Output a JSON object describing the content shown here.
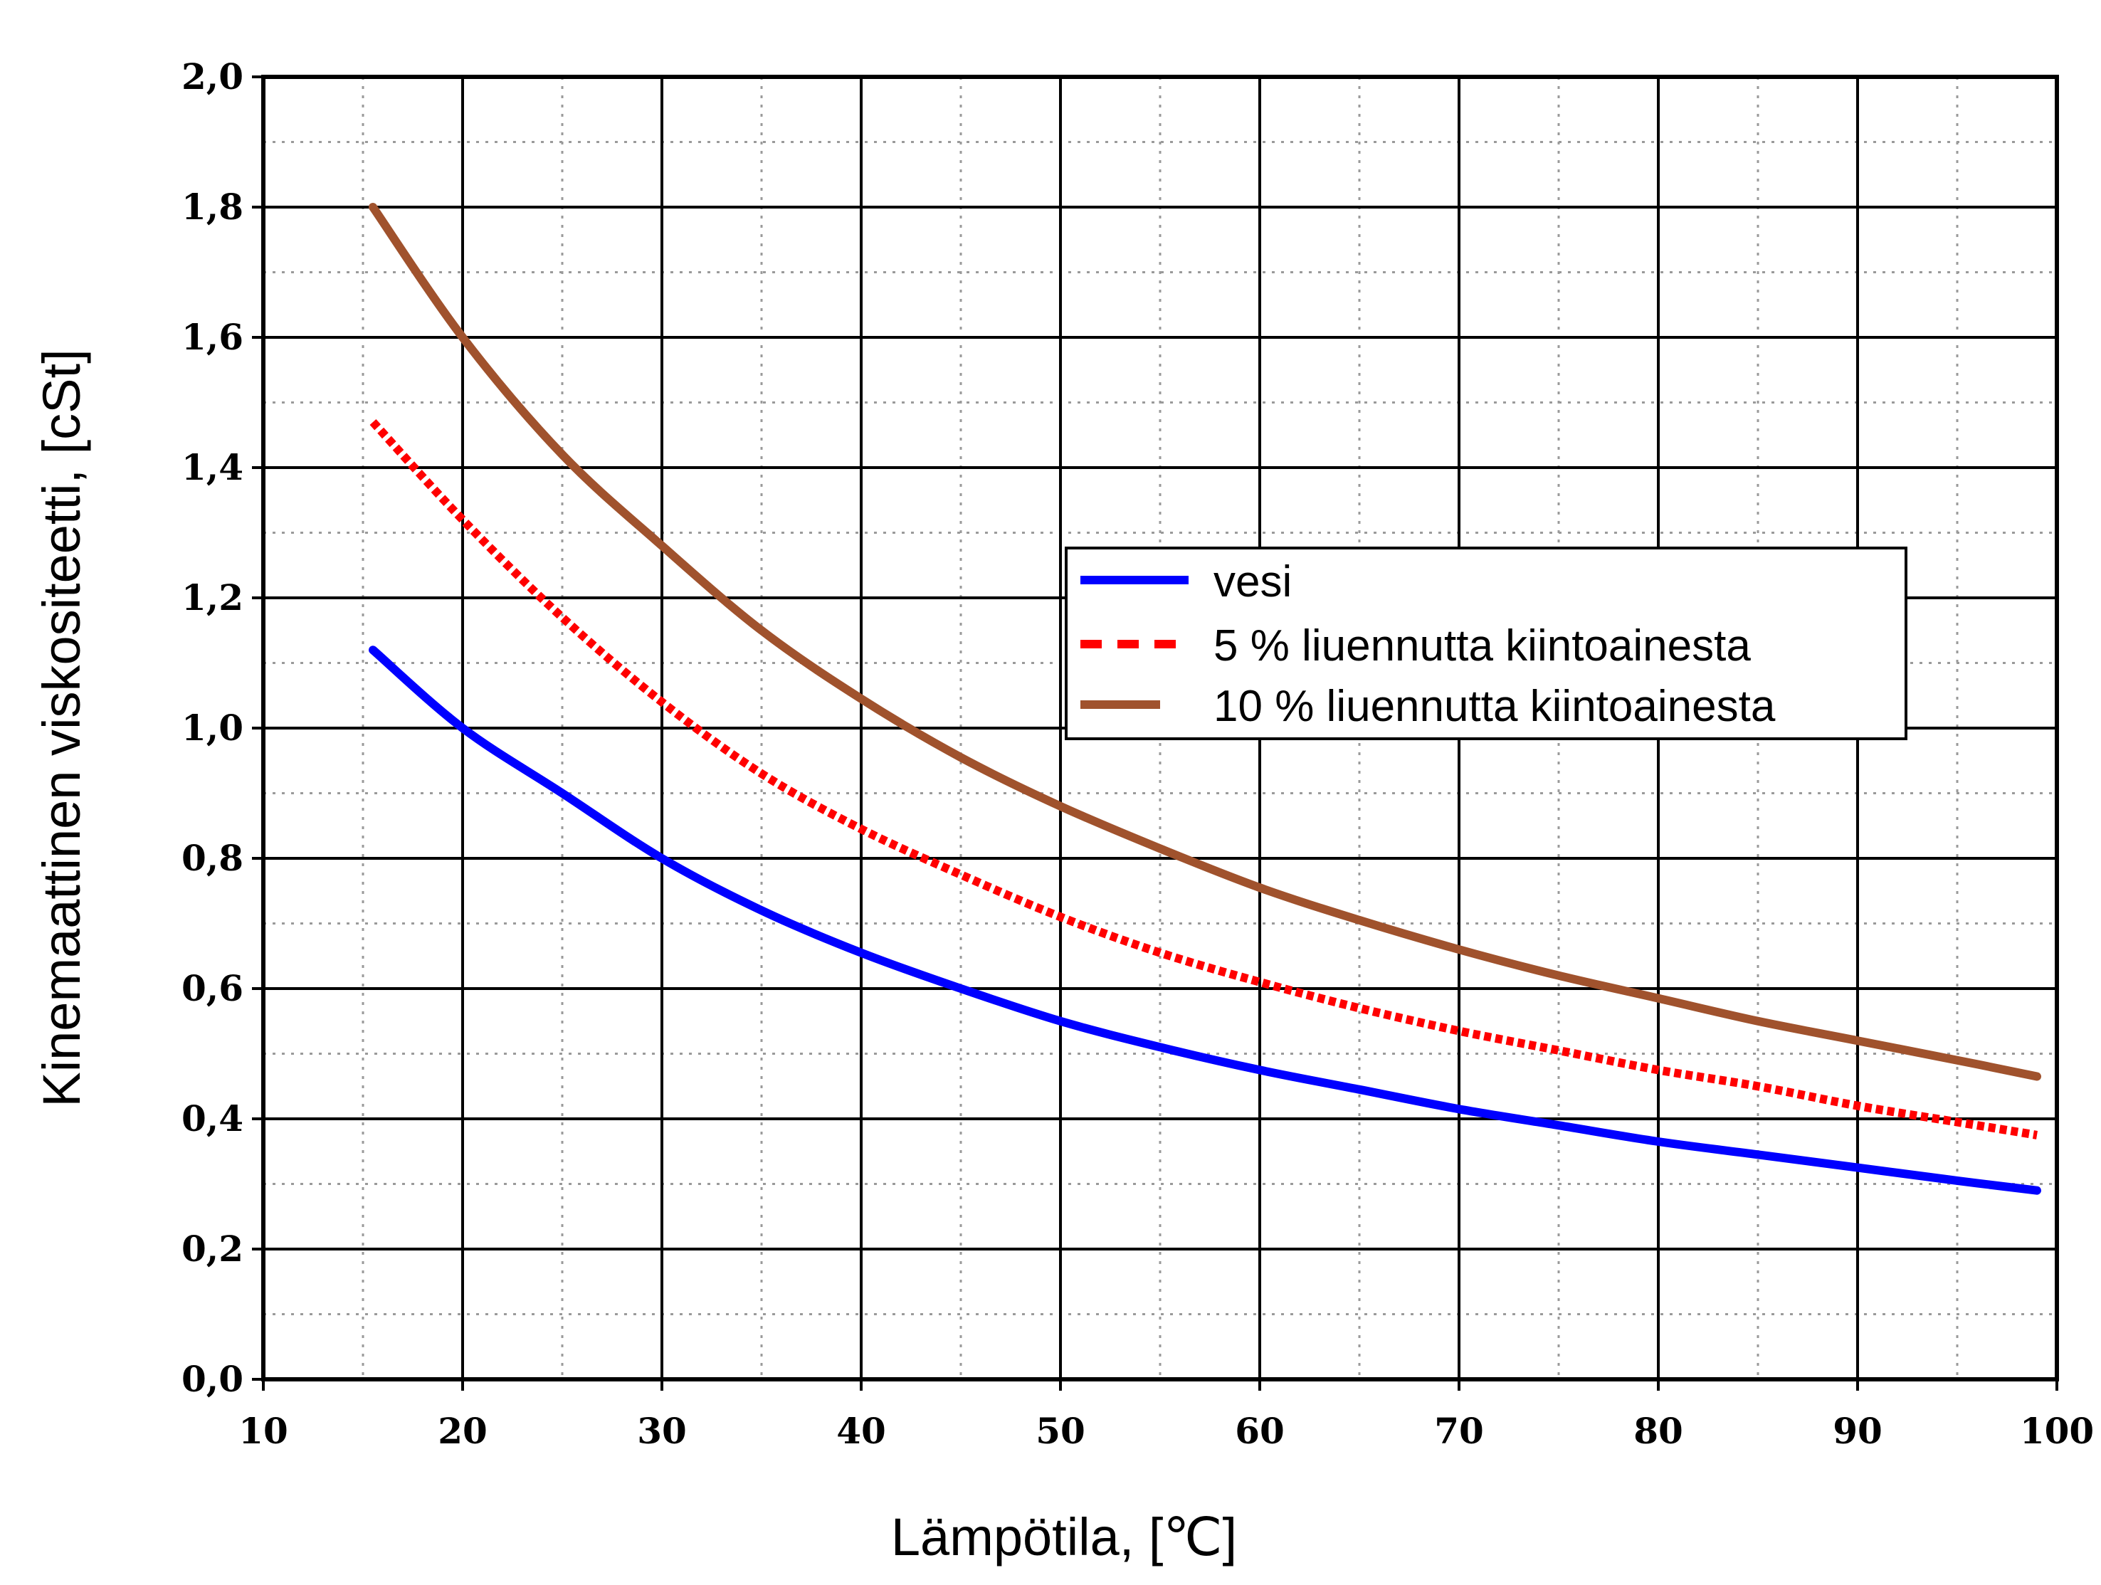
{
  "chart_data": {
    "type": "line",
    "title": "",
    "xlabel": "Lämpötila, [℃]",
    "ylabel": "Kinemaattinen viskositeetti, [cSt]",
    "xlim": [
      10,
      100
    ],
    "ylim": [
      0.0,
      2.0
    ],
    "xticks": [
      10,
      20,
      30,
      40,
      50,
      60,
      70,
      80,
      90,
      100
    ],
    "xtick_labels": [
      "10",
      "20",
      "30",
      "40",
      "50",
      "60",
      "70",
      "80",
      "90",
      "100"
    ],
    "yticks": [
      0.0,
      0.2,
      0.4,
      0.6,
      0.8,
      1.0,
      1.2,
      1.4,
      1.6,
      1.8,
      2.0
    ],
    "ytick_labels": [
      "0,0",
      "0,2",
      "0,4",
      "0,6",
      "0,8",
      "1,0",
      "1,2",
      "1,4",
      "1,6",
      "1,8",
      "2,0"
    ],
    "grid": true,
    "minor_grid": true,
    "legend_position": "center-right",
    "x": [
      15.5,
      20,
      25,
      30,
      35,
      40,
      45,
      50,
      55,
      60,
      65,
      70,
      75,
      80,
      85,
      90,
      95,
      99
    ],
    "series": [
      {
        "name": "vesi",
        "color": "#0000ff",
        "style": "solid",
        "values": [
          1.12,
          1.0,
          0.9,
          0.8,
          0.72,
          0.655,
          0.6,
          0.55,
          0.51,
          0.475,
          0.445,
          0.415,
          0.39,
          0.365,
          0.345,
          0.325,
          0.305,
          0.29
        ]
      },
      {
        "name": "5 % liuennutta kiintoainesta",
        "color": "#ff0000",
        "style": "dashed",
        "values": [
          1.47,
          1.32,
          1.17,
          1.04,
          0.93,
          0.845,
          0.775,
          0.71,
          0.655,
          0.61,
          0.57,
          0.535,
          0.505,
          0.475,
          0.45,
          0.42,
          0.395,
          0.375
        ]
      },
      {
        "name": "10 % liuennutta kiintoainesta",
        "color": "#a0522d",
        "style": "solid",
        "values": [
          1.8,
          1.6,
          1.42,
          1.28,
          1.15,
          1.045,
          0.955,
          0.88,
          0.815,
          0.755,
          0.705,
          0.66,
          0.62,
          0.585,
          0.55,
          0.52,
          0.49,
          0.465
        ]
      }
    ]
  }
}
